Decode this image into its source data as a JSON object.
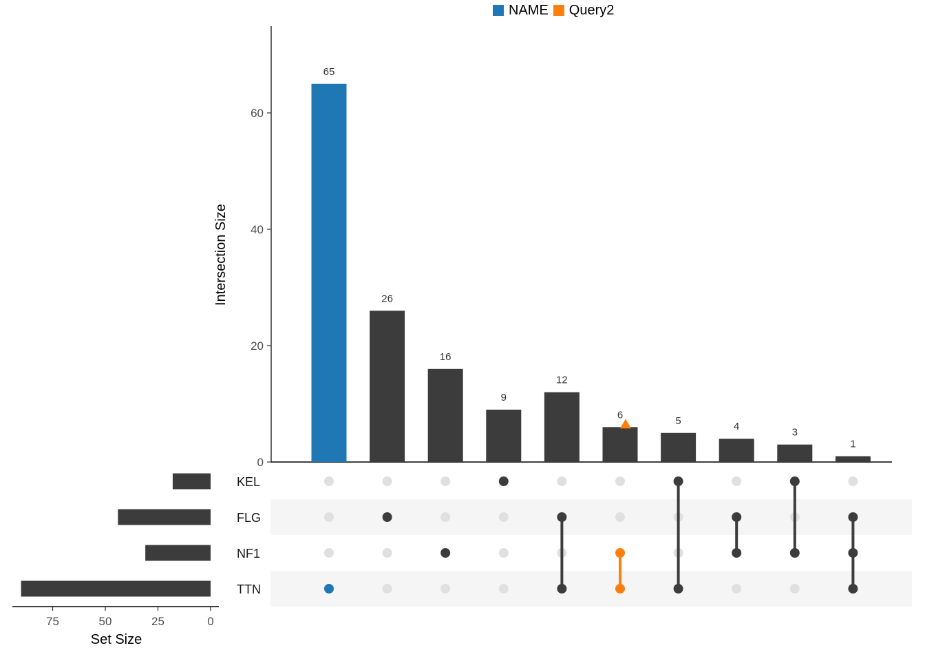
{
  "legend": [
    {
      "label": "NAME",
      "color": "#1f77b4"
    },
    {
      "label": "Query2",
      "color": "#ff7f0e"
    }
  ],
  "chart_data": {
    "type": "upset",
    "intersection_axis": {
      "ylabel": "Intersection Size",
      "ylim": [
        0,
        75
      ],
      "ticks": [
        0,
        20,
        40,
        60
      ]
    },
    "set_size_axis": {
      "xlabel": "Set Size",
      "xlim": [
        0,
        90
      ],
      "ticks": [
        75,
        50,
        25,
        0
      ]
    },
    "sets": [
      {
        "name": "KEL",
        "size": 18
      },
      {
        "name": "FLG",
        "size": 44
      },
      {
        "name": "NF1",
        "size": 31
      },
      {
        "name": "TTN",
        "size": 90
      }
    ],
    "intersections": [
      {
        "members": [
          "TTN"
        ],
        "size": 65,
        "highlight": "NAME"
      },
      {
        "members": [
          "FLG"
        ],
        "size": 26
      },
      {
        "members": [
          "NF1"
        ],
        "size": 16
      },
      {
        "members": [
          "KEL"
        ],
        "size": 9
      },
      {
        "members": [
          "FLG",
          "TTN"
        ],
        "size": 12
      },
      {
        "members": [
          "NF1",
          "TTN"
        ],
        "size": 6,
        "highlight": "Query2",
        "marker": "triangle"
      },
      {
        "members": [
          "KEL",
          "TTN"
        ],
        "size": 5
      },
      {
        "members": [
          "FLG",
          "NF1"
        ],
        "size": 4
      },
      {
        "members": [
          "KEL",
          "NF1"
        ],
        "size": 3
      },
      {
        "members": [
          "FLG",
          "NF1",
          "TTN"
        ],
        "size": 1
      }
    ],
    "colors": {
      "default": "#3c3c3c",
      "inactive_dot": "#e0e0e0",
      "stripe": "#f5f5f5"
    }
  }
}
